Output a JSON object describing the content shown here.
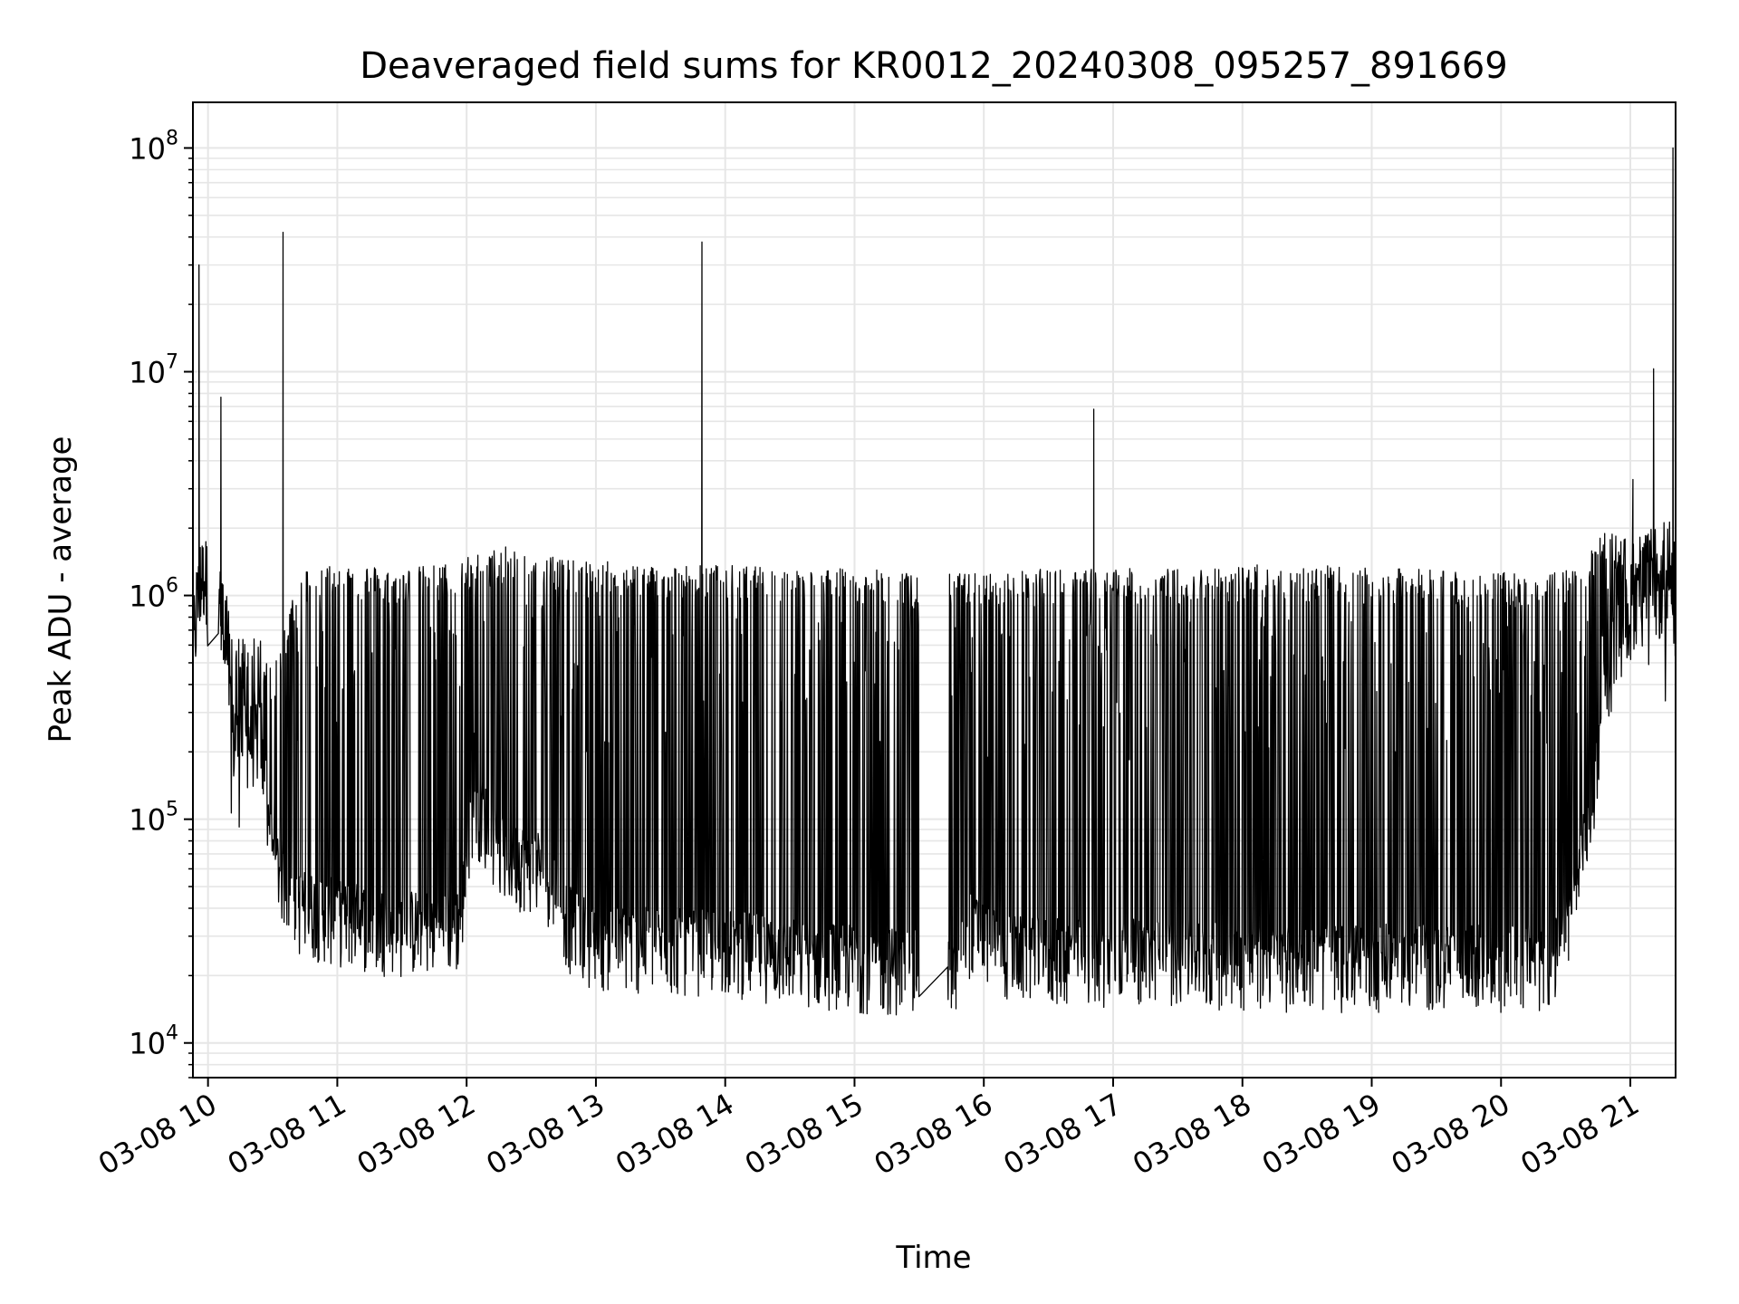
{
  "chart_data": {
    "type": "line",
    "title": "Deaveraged field sums for KR0012_20240308_095257_891669",
    "xlabel": "Time",
    "ylabel": "Peak ADU - average",
    "yscale": "log",
    "ylim": [
      7000,
      160000000
    ],
    "xlim": [
      "03-08 09:53",
      "03-08 21:21"
    ],
    "grid": true,
    "line_color": "#000000",
    "grid_color": "#e6e6e6",
    "x_ticks": [
      {
        "t": 10,
        "label": "03-08 10"
      },
      {
        "t": 11,
        "label": "03-08 11"
      },
      {
        "t": 12,
        "label": "03-08 12"
      },
      {
        "t": 13,
        "label": "03-08 13"
      },
      {
        "t": 14,
        "label": "03-08 14"
      },
      {
        "t": 15,
        "label": "03-08 15"
      },
      {
        "t": 16,
        "label": "03-08 16"
      },
      {
        "t": 17,
        "label": "03-08 17"
      },
      {
        "t": 18,
        "label": "03-08 18"
      },
      {
        "t": 19,
        "label": "03-08 19"
      },
      {
        "t": 20,
        "label": "03-08 20"
      },
      {
        "t": 21,
        "label": "03-08 21"
      }
    ],
    "y_ticks": [
      {
        "exp": 4,
        "base": "10",
        "sup": "4"
      },
      {
        "exp": 5,
        "base": "10",
        "sup": "5"
      },
      {
        "exp": 6,
        "base": "10",
        "sup": "6"
      },
      {
        "exp": 7,
        "base": "10",
        "sup": "7"
      },
      {
        "exp": 8,
        "base": "10",
        "sup": "8"
      }
    ],
    "envelope": [
      {
        "t": 9.883,
        "low": 400000,
        "high": 800000
      },
      {
        "t": 9.95,
        "low": 900000,
        "high": 2200000
      },
      {
        "t": 10.05,
        "low": 900000,
        "high": 1900000
      },
      {
        "t": 10.2,
        "low": 160000,
        "high": 600000
      },
      {
        "t": 10.4,
        "low": 170000,
        "high": 600000
      },
      {
        "t": 10.5,
        "low": 50000,
        "high": 400000
      },
      {
        "t": 10.7,
        "low": 30000,
        "high": 1200000
      },
      {
        "t": 11.0,
        "low": 27000,
        "high": 1300000
      },
      {
        "t": 11.5,
        "low": 24000,
        "high": 1200000
      },
      {
        "t": 11.95,
        "low": 25000,
        "high": 1300000
      },
      {
        "t": 12.05,
        "low": 90000,
        "high": 1400000
      },
      {
        "t": 12.3,
        "low": 50000,
        "high": 1500000
      },
      {
        "t": 12.6,
        "low": 45000,
        "high": 1500000
      },
      {
        "t": 12.8,
        "low": 25000,
        "high": 1300000
      },
      {
        "t": 13.0,
        "low": 21000,
        "high": 1300000
      },
      {
        "t": 13.5,
        "low": 20000,
        "high": 1250000
      },
      {
        "t": 14.0,
        "low": 20000,
        "high": 1250000
      },
      {
        "t": 14.5,
        "low": 18000,
        "high": 1200000
      },
      {
        "t": 15.0,
        "low": 17000,
        "high": 1200000
      },
      {
        "t": 15.5,
        "low": 16000,
        "high": 1150000
      },
      {
        "t": 15.75,
        "low": 15000,
        "high": 1150000
      },
      {
        "t": 15.9,
        "low": 25000,
        "high": 1150000
      },
      {
        "t": 16.1,
        "low": 19000,
        "high": 1150000
      },
      {
        "t": 16.5,
        "low": 18000,
        "high": 1200000
      },
      {
        "t": 17.0,
        "low": 18000,
        "high": 1200000
      },
      {
        "t": 17.5,
        "low": 18000,
        "high": 1200000
      },
      {
        "t": 18.0,
        "low": 17000,
        "high": 1250000
      },
      {
        "t": 18.5,
        "low": 17000,
        "high": 1250000
      },
      {
        "t": 19.0,
        "low": 17000,
        "high": 1200000
      },
      {
        "t": 19.5,
        "low": 17000,
        "high": 1200000
      },
      {
        "t": 20.0,
        "low": 17000,
        "high": 1150000
      },
      {
        "t": 20.4,
        "low": 17000,
        "high": 1150000
      },
      {
        "t": 20.55,
        "low": 30000,
        "high": 1200000
      },
      {
        "t": 20.7,
        "low": 80000,
        "high": 1500000
      },
      {
        "t": 20.8,
        "low": 300000,
        "high": 1800000
      },
      {
        "t": 21.0,
        "low": 700000,
        "high": 1600000
      },
      {
        "t": 21.3,
        "low": 800000,
        "high": 2000000
      },
      {
        "t": 21.35,
        "low": 450000,
        "high": 1500000
      }
    ],
    "spikes": [
      {
        "t": 9.93,
        "value": 30000000
      },
      {
        "t": 10.1,
        "value": 7700000
      },
      {
        "t": 10.58,
        "value": 42000000
      },
      {
        "t": 13.82,
        "value": 38000000
      },
      {
        "t": 16.85,
        "value": 6800000
      },
      {
        "t": 21.02,
        "value": 3300000
      },
      {
        "t": 21.18,
        "value": 10300000
      },
      {
        "t": 21.33,
        "value": 100000000
      }
    ]
  }
}
